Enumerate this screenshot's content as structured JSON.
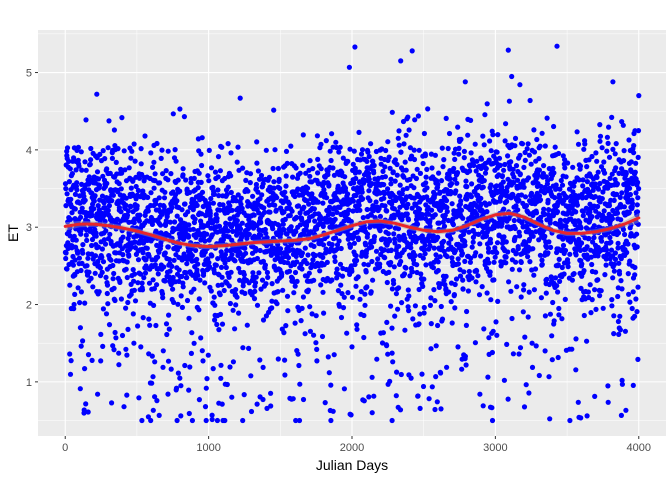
{
  "chart_data": {
    "type": "scatter",
    "title": "",
    "xlabel": "Julian Days",
    "ylabel": "ET",
    "xlim": [
      -190,
      4190
    ],
    "ylim": [
      0.3,
      5.55
    ],
    "x_ticks": [
      0,
      1000,
      2000,
      3000,
      4000
    ],
    "x_tick_labels": [
      "0",
      "1000",
      "2000",
      "3000",
      "4000"
    ],
    "y_ticks": [
      1,
      2,
      3,
      4,
      5
    ],
    "y_tick_labels": [
      "1",
      "2",
      "3",
      "4",
      "5"
    ],
    "grid": true,
    "legend": "none",
    "colors": {
      "panel_background": "#ebebeb",
      "grid_major": "#ffffff",
      "points": "#0000ff",
      "smooth_line": "#e8262b",
      "confidence_band": "#999999"
    },
    "series": [
      {
        "kind": "points",
        "n_points": 4000,
        "x_range": [
          1,
          4000
        ],
        "y_range": [
          0.5,
          5.35
        ],
        "approx_mean": 3.0,
        "outliers": [
          {
            "x": 2020,
            "y": 5.33
          },
          {
            "x": 2420,
            "y": 5.28
          },
          {
            "x": 3090,
            "y": 5.29
          },
          {
            "x": 3430,
            "y": 5.34
          },
          {
            "x": 2340,
            "y": 5.15
          },
          {
            "x": 3820,
            "y": 4.88
          },
          {
            "x": 2790,
            "y": 4.88
          },
          {
            "x": 220,
            "y": 4.72
          },
          {
            "x": 1220,
            "y": 4.67
          },
          {
            "x": 2980,
            "y": 0.5
          },
          {
            "x": 2280,
            "y": 0.5
          },
          {
            "x": 1100,
            "y": 0.5
          },
          {
            "x": 780,
            "y": 0.5
          },
          {
            "x": 3640,
            "y": 0.56
          }
        ]
      },
      {
        "kind": "smooth",
        "x": [
          0,
          100,
          200,
          300,
          400,
          500,
          600,
          700,
          800,
          900,
          1000,
          1100,
          1200,
          1300,
          1400,
          1500,
          1600,
          1700,
          1800,
          1900,
          2000,
          2100,
          2200,
          2300,
          2400,
          2500,
          2600,
          2700,
          2800,
          2900,
          3000,
          3100,
          3200,
          3300,
          3400,
          3500,
          3600,
          3700,
          3800,
          3900,
          4000
        ],
        "y": [
          3.01,
          3.04,
          3.04,
          3.02,
          2.99,
          2.95,
          2.9,
          2.84,
          2.79,
          2.76,
          2.75,
          2.76,
          2.78,
          2.8,
          2.81,
          2.82,
          2.83,
          2.85,
          2.9,
          2.96,
          3.02,
          3.07,
          3.08,
          3.05,
          3.0,
          2.96,
          2.94,
          2.96,
          3.02,
          3.1,
          3.16,
          3.18,
          3.13,
          3.04,
          2.96,
          2.92,
          2.92,
          2.94,
          2.98,
          3.04,
          3.12
        ],
        "ci_halfwidth": [
          0.055,
          0.04,
          0.035,
          0.035,
          0.035,
          0.035,
          0.035,
          0.035,
          0.035,
          0.035,
          0.035,
          0.035,
          0.035,
          0.035,
          0.035,
          0.035,
          0.035,
          0.035,
          0.035,
          0.035,
          0.035,
          0.035,
          0.035,
          0.035,
          0.035,
          0.035,
          0.035,
          0.035,
          0.035,
          0.035,
          0.035,
          0.035,
          0.035,
          0.035,
          0.035,
          0.035,
          0.035,
          0.035,
          0.035,
          0.04,
          0.06
        ]
      }
    ]
  }
}
